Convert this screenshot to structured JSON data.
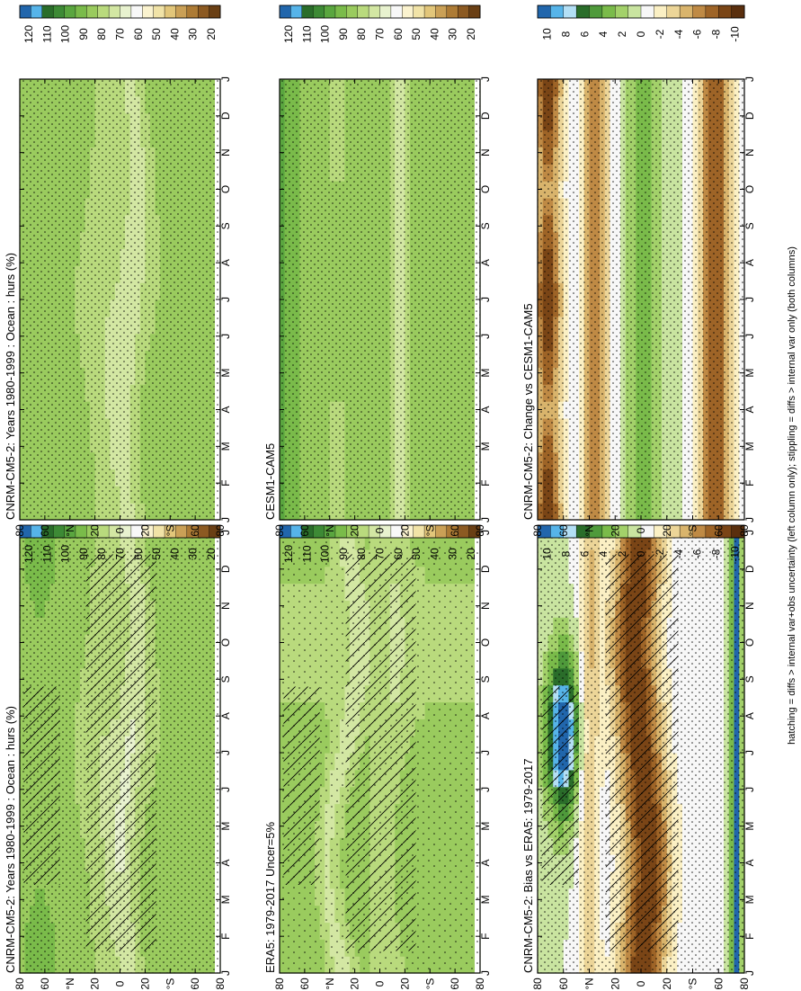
{
  "figure": {
    "footnote": "hatching = diffs > internal var+obs uncertainty (left column only); stippling = diffs > internal var only (both columns)"
  },
  "chart_data": [
    {
      "type": "heatmap",
      "title": "CNRM-CM5-2: Years 1980-1999 : Ocean : hurs (%)",
      "x": [
        "J",
        "F",
        "M",
        "A",
        "M",
        "J",
        "J",
        "A",
        "S",
        "O",
        "N",
        "D",
        "J"
      ],
      "y": [
        "80",
        "60",
        "°N",
        "20",
        "0",
        "20",
        "°S",
        "60",
        "80"
      ],
      "colorbar": [
        "120",
        "110",
        "100",
        "90",
        "80",
        "70",
        "60",
        "50",
        "40",
        "30",
        "20"
      ],
      "field": "lm",
      "hatching": true,
      "stippling": "dense"
    },
    {
      "type": "heatmap",
      "title": "CNRM-CM5-2: Years 1980-1999 : Ocean : hurs (%)",
      "x": [
        "J",
        "F",
        "M",
        "A",
        "M",
        "J",
        "J",
        "A",
        "S",
        "O",
        "N",
        "D",
        "J"
      ],
      "y": [
        "80",
        "60",
        "°N",
        "20",
        "0",
        "20",
        "°S",
        "60",
        "80"
      ],
      "colorbar": [
        "120",
        "110",
        "100",
        "90",
        "80",
        "70",
        "60",
        "50",
        "40",
        "30",
        "20"
      ],
      "field": "rm",
      "hatching": false,
      "stippling": "dense"
    },
    {
      "type": "heatmap",
      "title": "ERA5: 1979-2017 Uncer=5%",
      "x": [
        "J",
        "F",
        "M",
        "A",
        "M",
        "J",
        "J",
        "A",
        "S",
        "O",
        "N",
        "D",
        "J"
      ],
      "y": [
        "80",
        "60",
        "°N",
        "20",
        "0",
        "20",
        "°S",
        "60",
        "80"
      ],
      "colorbar": [
        "120",
        "110",
        "100",
        "90",
        "80",
        "70",
        "60",
        "50",
        "40",
        "30",
        "20"
      ],
      "field": "obs",
      "hatching": true,
      "stippling": "sparse"
    },
    {
      "type": "heatmap",
      "title": "CESM1-CAM5",
      "x": [
        "J",
        "F",
        "M",
        "A",
        "M",
        "J",
        "J",
        "A",
        "S",
        "O",
        "N",
        "D",
        "J"
      ],
      "y": [
        "80",
        "60",
        "°N",
        "20",
        "0",
        "20",
        "°S",
        "60",
        "80"
      ],
      "colorbar": [
        "120",
        "110",
        "100",
        "90",
        "80",
        "70",
        "60",
        "50",
        "40",
        "30",
        "20"
      ],
      "field": "ref",
      "hatching": false,
      "stippling": "dense"
    },
    {
      "type": "heatmap",
      "title": "CNRM-CM5-2: Bias vs ERA5: 1979-2017",
      "x": [
        "J",
        "F",
        "M",
        "A",
        "M",
        "J",
        "J",
        "A",
        "S",
        "O",
        "N",
        "D",
        "J"
      ],
      "y": [
        "80",
        "60",
        "°N",
        "20",
        "0",
        "20",
        "°S",
        "60",
        "80"
      ],
      "colorbar": [
        "10",
        "8",
        "6",
        "4",
        "2",
        "0",
        "-2",
        "-4",
        "-6",
        "-8",
        "-10"
      ],
      "field": "bias",
      "hatching": true,
      "stippling": "dense"
    },
    {
      "type": "heatmap",
      "title": "CNRM-CM5-2: Change vs CESM1-CAM5",
      "x": [
        "J",
        "F",
        "M",
        "A",
        "M",
        "J",
        "J",
        "A",
        "S",
        "O",
        "N",
        "D",
        "J"
      ],
      "y": [
        "80",
        "60",
        "°N",
        "20",
        "0",
        "20",
        "°S",
        "60",
        "80"
      ],
      "colorbar": [
        "10",
        "8",
        "6",
        "4",
        "2",
        "0",
        "-2",
        "-4",
        "-6",
        "-8",
        "-10"
      ],
      "field": "change",
      "hatching": false,
      "stippling": "dense"
    }
  ],
  "colors": {
    "abs": [
      "#2166ac",
      "#56b4e9",
      "#2a6d2a",
      "#3d8a35",
      "#5aa63f",
      "#7abb4a",
      "#9acb5e",
      "#b9da7d",
      "#d3e7a3",
      "#e8f2cf",
      "#f8f8f8",
      "#fbf3cf",
      "#f1e3a7",
      "#e2c67a",
      "#caa056",
      "#ad7b35",
      "#8c5a22",
      "#6a3f14"
    ],
    "diff": [
      "#2166ac",
      "#56b4e9",
      "#b3dff5",
      "#2a6d2a",
      "#4f9a3b",
      "#7abb4a",
      "#a3d16a",
      "#c9e4a0",
      "#f7f7f7",
      "#fbf0c4",
      "#ecd598",
      "#d9b46c",
      "#bf8a45",
      "#9e6427",
      "#7a4516",
      "#5a2f0e"
    ]
  }
}
